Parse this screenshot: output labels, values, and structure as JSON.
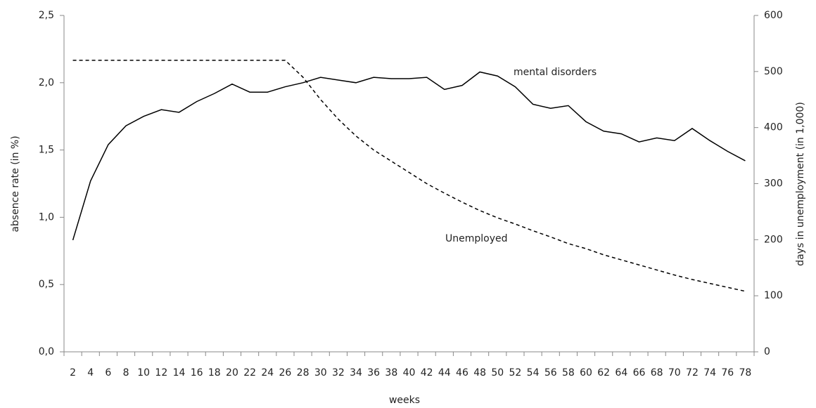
{
  "chart_data": {
    "type": "line",
    "x_label": "weeks",
    "y_label": "absence rate (in %)",
    "y2_label": "days in unemployment (in 1,000)",
    "categories": [
      2,
      4,
      6,
      8,
      10,
      12,
      14,
      16,
      18,
      20,
      22,
      24,
      26,
      28,
      30,
      32,
      34,
      36,
      38,
      40,
      42,
      44,
      46,
      48,
      50,
      52,
      54,
      56,
      58,
      60,
      62,
      64,
      66,
      68,
      70,
      72,
      74,
      76,
      78
    ],
    "series": [
      {
        "name": "mental disorders",
        "color": "#000000",
        "dash": "solid",
        "values": [
          0.83,
          1.27,
          1.54,
          1.68,
          1.75,
          1.8,
          1.78,
          1.86,
          1.92,
          1.99,
          1.93,
          1.93,
          1.97,
          2.0,
          2.04,
          2.02,
          2.0,
          2.04,
          2.03,
          2.03,
          2.04,
          1.95,
          1.98,
          2.08,
          2.05,
          1.97,
          1.84,
          1.81,
          1.83,
          1.71,
          1.64,
          1.62,
          1.56,
          1.59,
          1.57,
          1.66,
          1.57,
          1.49,
          1.42
        ]
      },
      {
        "name": "Unemployed",
        "color": "#000000",
        "dash": "dashed",
        "axis": "y2",
        "values": [
          520,
          520,
          520,
          520,
          520,
          520,
          520,
          520,
          520,
          520,
          520,
          520,
          520,
          490,
          450,
          415,
          385,
          360,
          340,
          320,
          300,
          283,
          267,
          252,
          239,
          228,
          216,
          205,
          193,
          184,
          173,
          164,
          155,
          146,
          137,
          129,
          122,
          115,
          108
        ]
      }
    ],
    "ylim": [
      0,
      2.5
    ],
    "yticks": [
      {
        "value": 0,
        "label": "0,0"
      },
      {
        "value": 0.5,
        "label": "0,5"
      },
      {
        "value": 1,
        "label": "1,0"
      },
      {
        "value": 1.5,
        "label": "1,5"
      },
      {
        "value": 2,
        "label": "2,0"
      },
      {
        "value": 2.5,
        "label": "2,5"
      }
    ],
    "y2lim": [
      0,
      600
    ],
    "y2ticks": [
      0,
      100,
      200,
      300,
      400,
      500,
      600
    ],
    "grid": false
  }
}
